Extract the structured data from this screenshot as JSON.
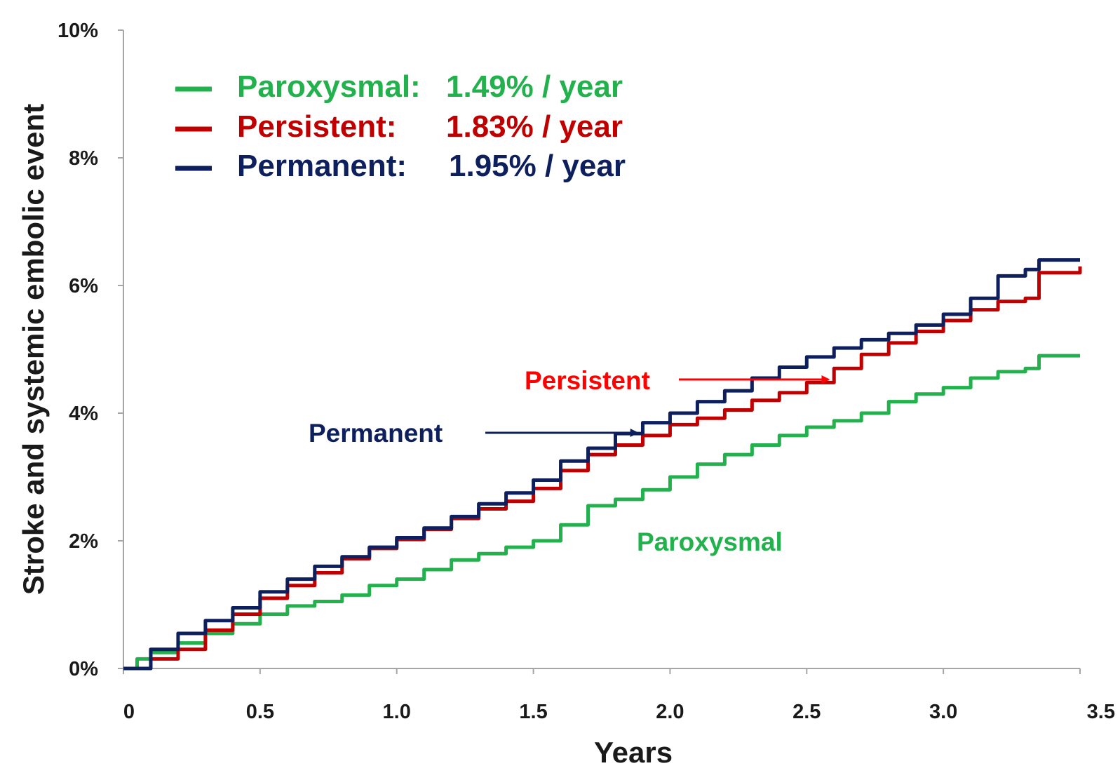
{
  "chart_data": {
    "type": "line",
    "title": "",
    "xlabel": "Years",
    "ylabel": "Stroke and systemic embolic event",
    "xlim": [
      0,
      3.5
    ],
    "ylim": [
      0,
      10
    ],
    "x_ticks": [
      0,
      0.5,
      1.0,
      1.5,
      2.0,
      2.5,
      3.0,
      3.5
    ],
    "x_tick_labels": [
      "0",
      "0.5",
      "1.0",
      "1.5",
      "2.0",
      "2.5",
      "3.0",
      "3.5"
    ],
    "y_ticks": [
      0,
      2,
      4,
      6,
      8,
      10
    ],
    "y_tick_labels": [
      "0%",
      "2%",
      "4%",
      "6%",
      "8%",
      "10%"
    ],
    "grid": false,
    "legend_position": "top-left",
    "series": [
      {
        "name": "Paroxysmal",
        "legend_label": "Paroxysmal:",
        "rate": "1.49% / year",
        "color": "#22b14c",
        "points": [
          [
            0,
            0
          ],
          [
            0.05,
            0.15
          ],
          [
            0.1,
            0.25
          ],
          [
            0.2,
            0.4
          ],
          [
            0.3,
            0.55
          ],
          [
            0.4,
            0.7
          ],
          [
            0.5,
            0.85
          ],
          [
            0.6,
            0.98
          ],
          [
            0.7,
            1.05
          ],
          [
            0.8,
            1.15
          ],
          [
            0.9,
            1.3
          ],
          [
            1.0,
            1.4
          ],
          [
            1.1,
            1.55
          ],
          [
            1.2,
            1.7
          ],
          [
            1.3,
            1.8
          ],
          [
            1.4,
            1.9
          ],
          [
            1.5,
            2.0
          ],
          [
            1.6,
            2.25
          ],
          [
            1.7,
            2.55
          ],
          [
            1.8,
            2.65
          ],
          [
            1.9,
            2.8
          ],
          [
            2.0,
            3.0
          ],
          [
            2.1,
            3.2
          ],
          [
            2.2,
            3.35
          ],
          [
            2.3,
            3.5
          ],
          [
            2.4,
            3.65
          ],
          [
            2.5,
            3.78
          ],
          [
            2.6,
            3.88
          ],
          [
            2.7,
            4.0
          ],
          [
            2.8,
            4.18
          ],
          [
            2.9,
            4.3
          ],
          [
            3.0,
            4.4
          ],
          [
            3.1,
            4.55
          ],
          [
            3.2,
            4.65
          ],
          [
            3.3,
            4.7
          ],
          [
            3.35,
            4.9
          ],
          [
            3.5,
            4.9
          ]
        ]
      },
      {
        "name": "Persistent",
        "legend_label": "Persistent:",
        "rate": "1.83% / year",
        "color": "#c00000",
        "points": [
          [
            0,
            0
          ],
          [
            0.1,
            0.15
          ],
          [
            0.2,
            0.3
          ],
          [
            0.3,
            0.6
          ],
          [
            0.4,
            0.85
          ],
          [
            0.5,
            1.1
          ],
          [
            0.6,
            1.3
          ],
          [
            0.7,
            1.5
          ],
          [
            0.8,
            1.72
          ],
          [
            0.9,
            1.88
          ],
          [
            1.0,
            2.02
          ],
          [
            1.1,
            2.18
          ],
          [
            1.2,
            2.35
          ],
          [
            1.3,
            2.5
          ],
          [
            1.4,
            2.62
          ],
          [
            1.5,
            2.82
          ],
          [
            1.6,
            3.1
          ],
          [
            1.7,
            3.35
          ],
          [
            1.8,
            3.5
          ],
          [
            1.9,
            3.65
          ],
          [
            2.0,
            3.82
          ],
          [
            2.1,
            3.92
          ],
          [
            2.2,
            4.05
          ],
          [
            2.3,
            4.2
          ],
          [
            2.4,
            4.32
          ],
          [
            2.5,
            4.48
          ],
          [
            2.6,
            4.7
          ],
          [
            2.7,
            4.92
          ],
          [
            2.8,
            5.1
          ],
          [
            2.9,
            5.28
          ],
          [
            3.0,
            5.45
          ],
          [
            3.1,
            5.62
          ],
          [
            3.2,
            5.75
          ],
          [
            3.3,
            5.8
          ],
          [
            3.35,
            6.2
          ],
          [
            3.5,
            6.3
          ]
        ]
      },
      {
        "name": "Permanent",
        "legend_label": "Permanent:",
        "rate": "1.95% / year",
        "color": "#0d1f5c",
        "points": [
          [
            0,
            0
          ],
          [
            0.1,
            0.3
          ],
          [
            0.2,
            0.55
          ],
          [
            0.3,
            0.75
          ],
          [
            0.4,
            0.95
          ],
          [
            0.5,
            1.2
          ],
          [
            0.6,
            1.4
          ],
          [
            0.7,
            1.6
          ],
          [
            0.8,
            1.75
          ],
          [
            0.9,
            1.9
          ],
          [
            1.0,
            2.05
          ],
          [
            1.1,
            2.2
          ],
          [
            1.2,
            2.38
          ],
          [
            1.3,
            2.58
          ],
          [
            1.4,
            2.75
          ],
          [
            1.5,
            2.95
          ],
          [
            1.6,
            3.25
          ],
          [
            1.7,
            3.45
          ],
          [
            1.8,
            3.68
          ],
          [
            1.9,
            3.85
          ],
          [
            2.0,
            4.0
          ],
          [
            2.1,
            4.18
          ],
          [
            2.2,
            4.35
          ],
          [
            2.3,
            4.55
          ],
          [
            2.4,
            4.72
          ],
          [
            2.5,
            4.88
          ],
          [
            2.6,
            5.02
          ],
          [
            2.7,
            5.15
          ],
          [
            2.8,
            5.25
          ],
          [
            2.9,
            5.38
          ],
          [
            3.0,
            5.55
          ],
          [
            3.1,
            5.8
          ],
          [
            3.2,
            6.15
          ],
          [
            3.3,
            6.25
          ],
          [
            3.35,
            6.4
          ],
          [
            3.5,
            6.4
          ]
        ]
      }
    ],
    "annotations": [
      {
        "text": "Persistent",
        "color": "#ff0000",
        "arrow_to": [
          2.58,
          4.55
        ]
      },
      {
        "text": "Permanent",
        "color": "#0d1f5c",
        "arrow_to": [
          1.88,
          3.7
        ]
      },
      {
        "text": "Paroxysmal",
        "color": "#22b14c"
      }
    ]
  }
}
